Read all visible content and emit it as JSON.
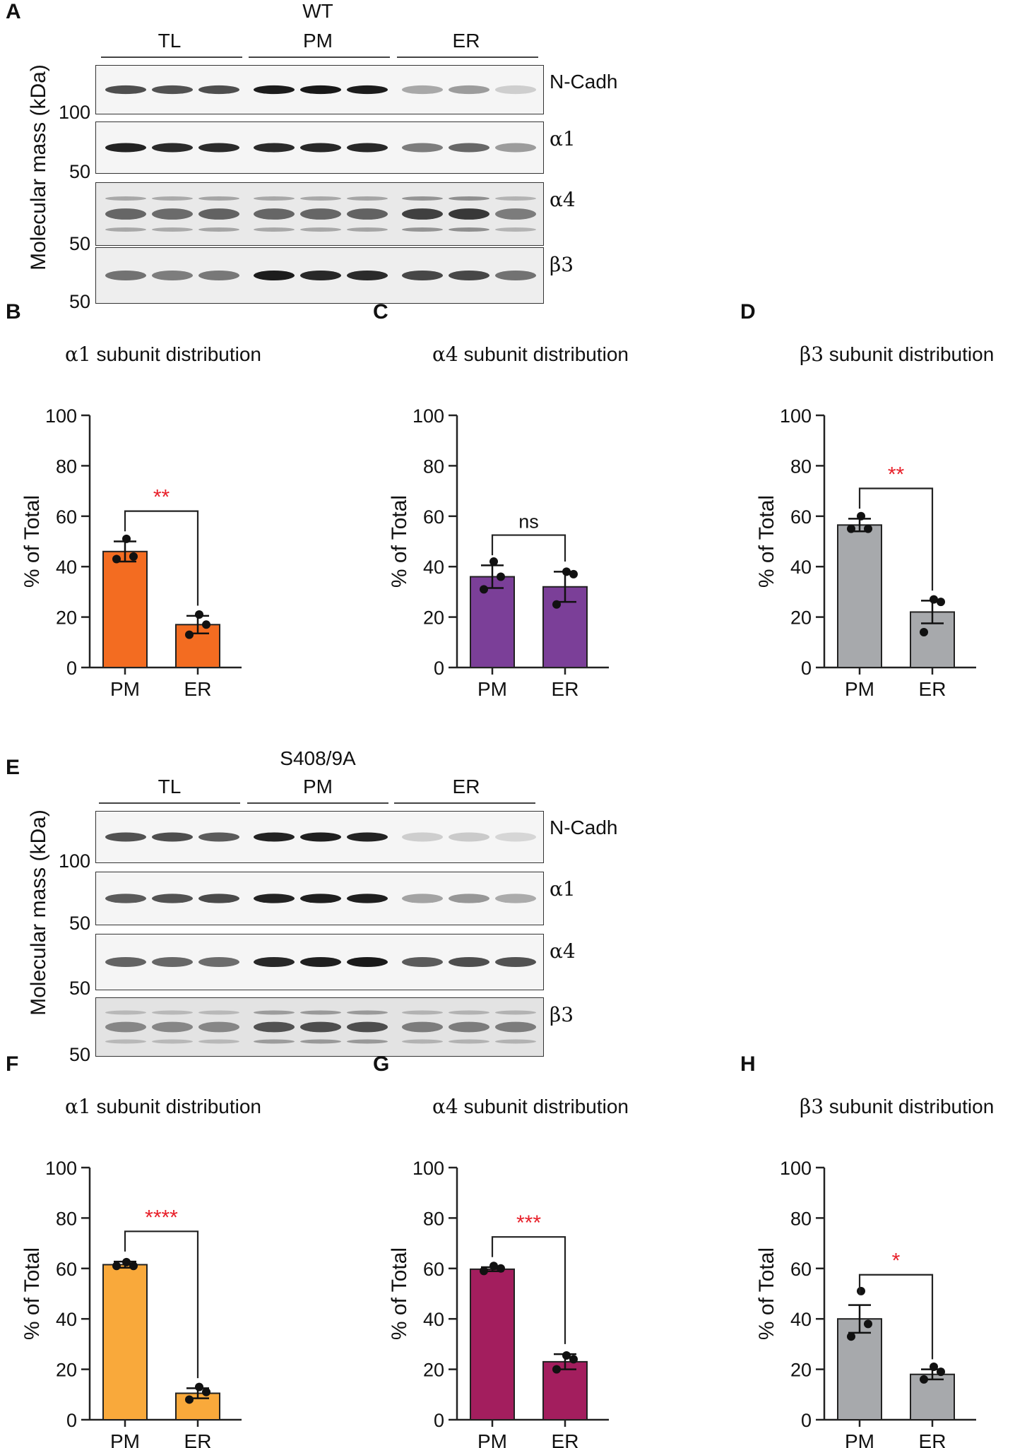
{
  "blots": [
    {
      "letter": "A",
      "condition": "WT",
      "groups": [
        "TL",
        "PM",
        "ER"
      ],
      "y_axis_label": "Molecular mass (kDa)",
      "rows": [
        {
          "protein": "N-Cadh",
          "marker": "100",
          "greek": false,
          "bands": [
            0.72,
            0.7,
            0.72,
            0.95,
            0.97,
            0.95,
            0.3,
            0.35,
            0.12
          ],
          "bg": 0.05
        },
        {
          "protein": "α1",
          "marker": "50",
          "greek": true,
          "bands": [
            0.92,
            0.88,
            0.88,
            0.88,
            0.9,
            0.9,
            0.5,
            0.6,
            0.35
          ],
          "bg": 0.05
        },
        {
          "protein": "α4",
          "marker": "50",
          "greek": true,
          "bands": [
            0.6,
            0.58,
            0.62,
            0.6,
            0.6,
            0.62,
            0.78,
            0.82,
            0.5
          ],
          "bg": 0.22
        },
        {
          "protein": "β3",
          "marker": "50",
          "greek": true,
          "bands": [
            0.55,
            0.5,
            0.52,
            0.95,
            0.9,
            0.88,
            0.75,
            0.75,
            0.55
          ],
          "bg": 0.15
        }
      ]
    },
    {
      "letter": "E",
      "condition": "S408/9A",
      "groups": [
        "TL",
        "PM",
        "ER"
      ],
      "y_axis_label": "Molecular mass (kDa)",
      "rows": [
        {
          "protein": "N-Cadh",
          "marker": "100",
          "greek": false,
          "bands": [
            0.7,
            0.72,
            0.66,
            0.92,
            0.94,
            0.92,
            0.12,
            0.14,
            0.08
          ],
          "bg": 0.04
        },
        {
          "protein": "α1",
          "marker": "50",
          "greek": true,
          "bands": [
            0.66,
            0.7,
            0.74,
            0.92,
            0.94,
            0.94,
            0.32,
            0.38,
            0.28
          ],
          "bg": 0.04
        },
        {
          "protein": "α4",
          "marker": "50",
          "greek": true,
          "bands": [
            0.62,
            0.6,
            0.58,
            0.9,
            0.94,
            0.96,
            0.66,
            0.72,
            0.7
          ],
          "bg": 0.05
        },
        {
          "protein": "β3",
          "marker": "50",
          "greek": true,
          "bands": [
            0.45,
            0.45,
            0.45,
            0.7,
            0.72,
            0.72,
            0.5,
            0.5,
            0.5
          ],
          "bg": 0.3
        }
      ]
    }
  ],
  "chart_data": [
    {
      "type": "bar",
      "letter": "B",
      "title_greek": "α1",
      "title_rest": " subunit distribution",
      "categories": [
        "PM",
        "ER"
      ],
      "values": [
        46,
        17
      ],
      "errors": [
        4,
        3.5
      ],
      "points": [
        [
          43,
          44,
          51
        ],
        [
          13,
          17,
          21
        ]
      ],
      "colors": [
        "#f36c21",
        "#f36c21"
      ],
      "ylabel": "% of Total",
      "ylim": [
        0,
        100
      ],
      "yticks": [
        "0",
        "20",
        "40",
        "60",
        "80",
        "100"
      ],
      "significance": "**",
      "sig_color": "#e8212b"
    },
    {
      "type": "bar",
      "letter": "C",
      "title_greek": "α4",
      "title_rest": " subunit distribution",
      "categories": [
        "PM",
        "ER"
      ],
      "values": [
        36,
        32
      ],
      "errors": [
        4.5,
        6
      ],
      "points": [
        [
          31,
          36,
          42
        ],
        [
          25,
          37,
          38
        ]
      ],
      "colors": [
        "#7b3f98",
        "#7b3f98"
      ],
      "ylabel": "% of Total",
      "ylim": [
        0,
        100
      ],
      "yticks": [
        "0",
        "20",
        "40",
        "60",
        "80",
        "100"
      ],
      "significance": "ns",
      "sig_color": "#111111"
    },
    {
      "type": "bar",
      "letter": "D",
      "title_greek": "β3",
      "title_rest": " subunit distribution",
      "categories": [
        "PM",
        "ER"
      ],
      "values": [
        56.5,
        22
      ],
      "errors": [
        2.5,
        4.5
      ],
      "points": [
        [
          55,
          55,
          60
        ],
        [
          14,
          26,
          27
        ]
      ],
      "colors": [
        "#a7a9ac",
        "#a7a9ac"
      ],
      "ylabel": "% of Total",
      "ylim": [
        0,
        100
      ],
      "yticks": [
        "0",
        "20",
        "40",
        "60",
        "80",
        "100"
      ],
      "significance": "**",
      "sig_color": "#e8212b"
    },
    {
      "type": "bar",
      "letter": "F",
      "title_greek": "α1",
      "title_rest": " subunit distribution",
      "categories": [
        "PM",
        "ER"
      ],
      "values": [
        61.5,
        10.5
      ],
      "errors": [
        1.2,
        2
      ],
      "points": [
        [
          61,
          61,
          62.5
        ],
        [
          8,
          11,
          13
        ]
      ],
      "colors": [
        "#f9a93b",
        "#f9a93b"
      ],
      "ylabel": "% of Total",
      "ylim": [
        0,
        100
      ],
      "yticks": [
        "0",
        "20",
        "40",
        "60",
        "80",
        "100"
      ],
      "significance": "****",
      "sig_color": "#e8212b"
    },
    {
      "type": "bar",
      "letter": "G",
      "title_greek": "α4",
      "title_rest": " subunit distribution",
      "categories": [
        "PM",
        "ER"
      ],
      "values": [
        59.7,
        23
      ],
      "errors": [
        0.8,
        3
      ],
      "points": [
        [
          59,
          60,
          61
        ],
        [
          20,
          24,
          25.5
        ]
      ],
      "colors": [
        "#a31e5e",
        "#a31e5e"
      ],
      "ylabel": "% of Total",
      "ylim": [
        0,
        100
      ],
      "yticks": [
        "0",
        "20",
        "40",
        "60",
        "80",
        "100"
      ],
      "significance": "***",
      "sig_color": "#e8212b"
    },
    {
      "type": "bar",
      "letter": "H",
      "title_greek": "β3",
      "title_rest": " subunit distribution",
      "categories": [
        "PM",
        "ER"
      ],
      "values": [
        40,
        18
      ],
      "errors": [
        5.5,
        2
      ],
      "points": [
        [
          33,
          38,
          51
        ],
        [
          16,
          19,
          21
        ]
      ],
      "colors": [
        "#a7a9ac",
        "#a7a9ac"
      ],
      "ylabel": "% of Total",
      "ylim": [
        0,
        100
      ],
      "yticks": [
        "0",
        "20",
        "40",
        "60",
        "80",
        "100"
      ],
      "significance": "*",
      "sig_color": "#e8212b"
    }
  ]
}
